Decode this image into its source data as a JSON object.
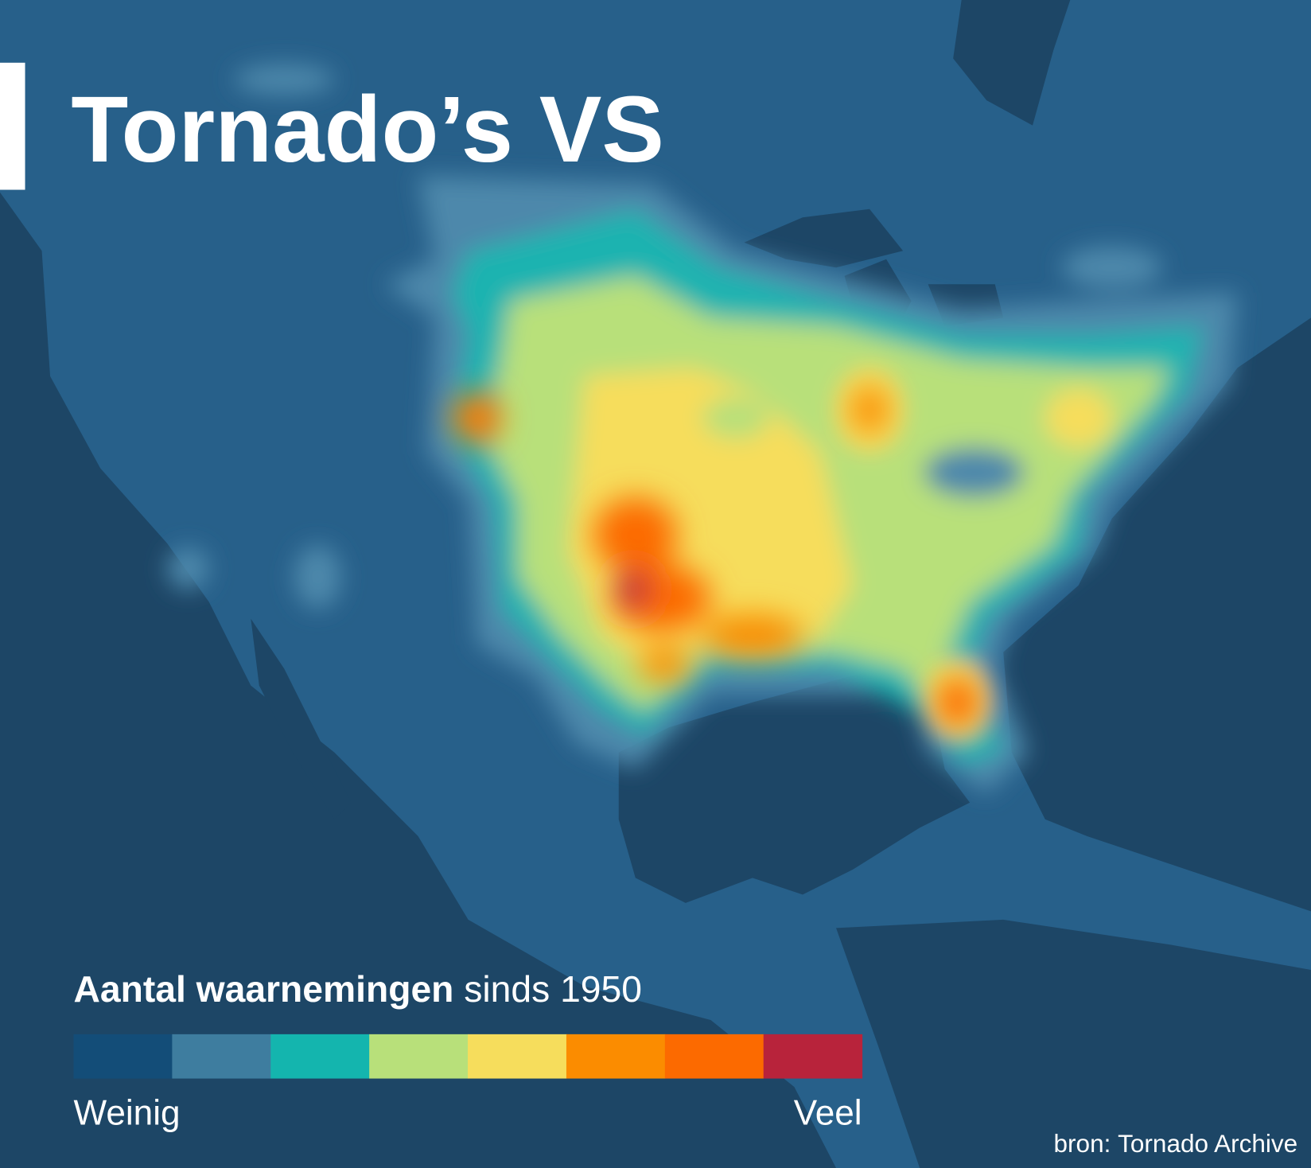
{
  "title": "Tornado’s VS",
  "legend": {
    "title_bold": "Aantal waarnemingen",
    "title_rest": "sinds 1950",
    "colors": [
      "#134d78",
      "#3e7d9f",
      "#14b5ae",
      "#b8e07a",
      "#f6dd5c",
      "#fb8c00",
      "#fc6a00",
      "#b8233b"
    ],
    "low_label": "Weinig",
    "high_label": "Veel"
  },
  "source": {
    "label": "bron:",
    "name": "Tornado Archive"
  }
}
